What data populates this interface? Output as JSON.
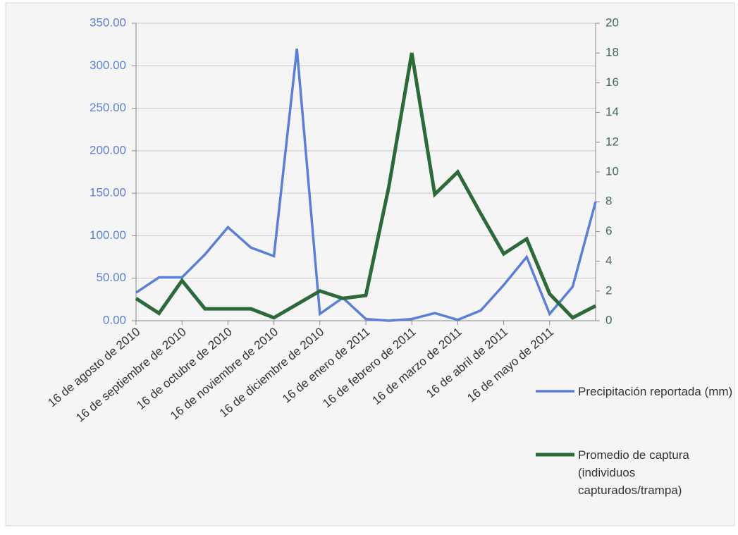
{
  "chart_data": {
    "type": "line",
    "categories": [
      "16 de agosto de 2010",
      null,
      "16 de septiembre de 2010",
      null,
      "16 de octubre de 2010",
      null,
      "16 de noviembre de 2010",
      null,
      "16 de diciembre de 2010",
      null,
      "16 de enero de 2011",
      null,
      "16 de febrero de 2011",
      null,
      "16 de marzo de 2011",
      null,
      "16 de abril de 2011",
      null,
      "16 de mayo de 2011",
      null,
      null
    ],
    "series": [
      {
        "name": "Precipitación reportada (mm)",
        "color": "#5b7fd6",
        "axis": "y",
        "values": [
          33,
          51,
          51,
          78,
          110,
          86,
          76,
          320,
          8,
          27,
          2,
          0,
          2,
          9,
          1,
          12,
          42,
          75,
          8,
          40,
          140
        ]
      },
      {
        "name": "Promedio de captura (individuos capturados/trampa)",
        "color": "#2d6a3a",
        "axis": "y2",
        "values": [
          1.5,
          0.5,
          2.7,
          0.8,
          0.8,
          0.8,
          0.2,
          1.1,
          2,
          1.5,
          1.7,
          9,
          18,
          8.5,
          10,
          7.2,
          4.5,
          5.5,
          1.8,
          0.2,
          1
        ]
      }
    ],
    "ylim": [
      0,
      350
    ],
    "yticks": [
      {
        "value": 0,
        "label": "0.00"
      },
      {
        "value": 50,
        "label": "50.00"
      },
      {
        "value": 100,
        "label": "100.00"
      },
      {
        "value": 150,
        "label": "150.00"
      },
      {
        "value": 200,
        "label": "200.00"
      },
      {
        "value": 250,
        "label": "250.00"
      },
      {
        "value": 300,
        "label": "300.00"
      },
      {
        "value": 350,
        "label": "350.00"
      }
    ],
    "y2lim": [
      0,
      20
    ],
    "y2ticks": [
      0,
      2,
      4,
      6,
      8,
      10,
      12,
      14,
      16,
      18,
      20
    ],
    "grid": true,
    "legend": "right"
  }
}
